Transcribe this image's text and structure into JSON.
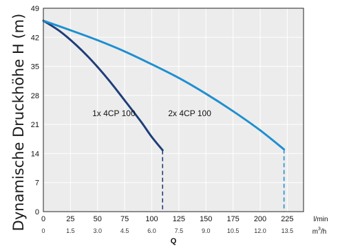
{
  "chart_data": {
    "type": "line",
    "ylabel": "Dynamische Druckhöhe H (m)",
    "xlabel": "Q",
    "x_unit": "l/min",
    "x2_unit_prefix": "m",
    "x2_unit_sup": "3",
    "x2_unit_suffix": "/h",
    "ylim": [
      0,
      49
    ],
    "xlim": [
      0,
      240
    ],
    "yticks": [
      0,
      7,
      14,
      21,
      28,
      35,
      42,
      49
    ],
    "xticks": [
      0,
      25,
      50,
      75,
      100,
      125,
      150,
      175,
      200,
      225
    ],
    "x2ticks": [
      "0",
      "1.5",
      "3.0",
      "4.5",
      "6.0",
      "7.5",
      "9.0",
      "10.5",
      "12.0",
      "13.5"
    ],
    "grid": true,
    "series": [
      {
        "name": "1x 4CP 100",
        "color": "#1f3d7a",
        "x": [
          0,
          15,
          30,
          45,
          60,
          75,
          90,
          100,
          110
        ],
        "y": [
          46,
          43.5,
          40.2,
          36.3,
          31.8,
          26.8,
          21.7,
          18.0,
          14.8
        ],
        "dashed_drop_to": 0,
        "label_at": [
          65,
          23
        ]
      },
      {
        "name": "2x 4CP 100",
        "color": "#1e8fd0",
        "x": [
          0,
          25,
          50,
          75,
          100,
          125,
          150,
          175,
          200,
          222
        ],
        "y": [
          46,
          43.7,
          41.3,
          38.6,
          35.5,
          32.2,
          28.4,
          24.2,
          19.6,
          15.0
        ],
        "dashed_drop_to": 0,
        "label_at": [
          135,
          23
        ]
      }
    ]
  }
}
